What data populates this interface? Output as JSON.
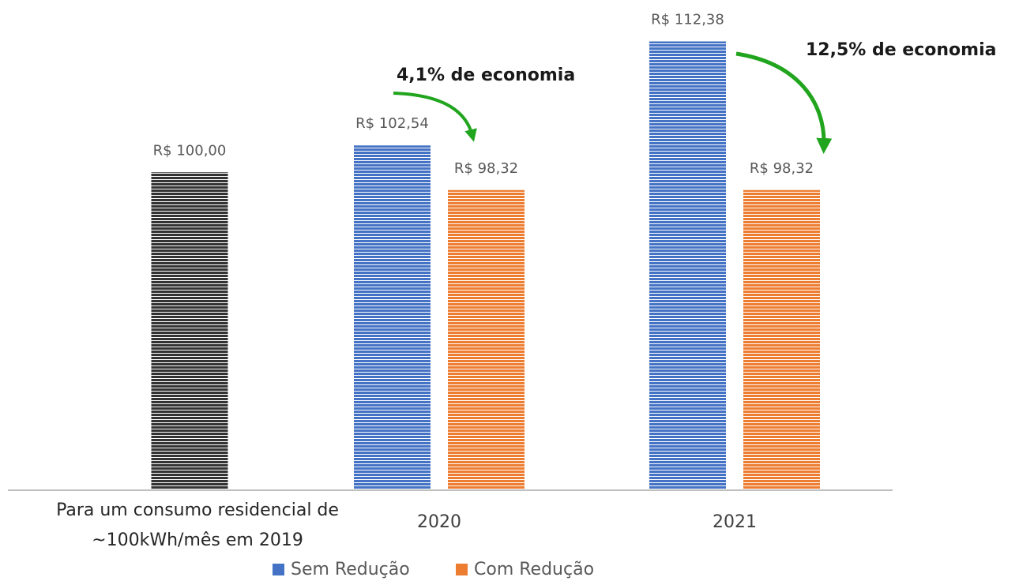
{
  "chart_data": {
    "type": "bar",
    "categories": [
      "Para um consumo residencial de ~100kWh/mês em 2019",
      "2020",
      "2021"
    ],
    "series": [
      {
        "color": "#333333",
        "values": [
          100,
          null,
          null
        ],
        "value_labels": [
          "R$ 100,00",
          null,
          null
        ]
      },
      {
        "name": "Sem Redução",
        "color": "#4472c4",
        "values": [
          null,
          102.54,
          112.38
        ],
        "value_labels": [
          null,
          "R$ 102,54",
          "R$ 112,38"
        ]
      },
      {
        "name": "Com Redução",
        "color": "#ed7d31",
        "values": [
          null,
          98.32,
          98.32
        ],
        "value_labels": [
          null,
          "R$ 98,32",
          "R$ 98,32"
        ]
      }
    ],
    "annotations": [
      "4,1% de economia",
      "12,5% de economia"
    ],
    "ylim": [
      70,
      116
    ]
  }
}
